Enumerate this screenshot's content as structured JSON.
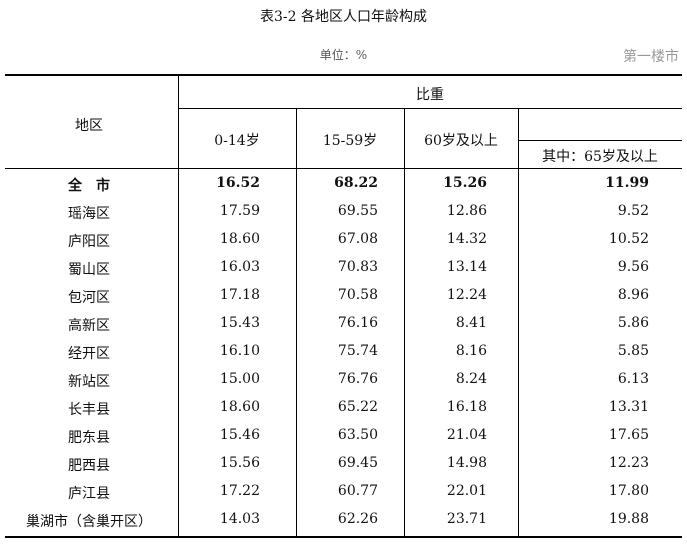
{
  "title": "表3-2  各地区人口年龄构成",
  "unit": "单位：%",
  "headers": {
    "region": "地区",
    "weight": "比重",
    "age_0_14": "0-14岁",
    "age_15_59": "15-59岁",
    "age_60_plus": "60岁及以上",
    "age_65_plus": "其中：65岁及以上"
  },
  "rows": [
    {
      "name": "全　市",
      "v": [
        "16.52",
        "68.22",
        "15.26",
        "11.99"
      ]
    },
    {
      "name": "瑶海区",
      "v": [
        "17.59",
        "69.55",
        "12.86",
        "9.52"
      ]
    },
    {
      "name": "庐阳区",
      "v": [
        "18.60",
        "67.08",
        "14.32",
        "10.52"
      ]
    },
    {
      "name": "蜀山区",
      "v": [
        "16.03",
        "70.83",
        "13.14",
        "9.56"
      ]
    },
    {
      "name": "包河区",
      "v": [
        "17.18",
        "70.58",
        "12.24",
        "8.96"
      ]
    },
    {
      "name": "高新区",
      "v": [
        "15.43",
        "76.16",
        "8.41",
        "5.86"
      ]
    },
    {
      "name": "经开区",
      "v": [
        "16.10",
        "75.74",
        "8.16",
        "5.85"
      ]
    },
    {
      "name": "新站区",
      "v": [
        "15.00",
        "76.76",
        "8.24",
        "6.13"
      ]
    },
    {
      "name": "长丰县",
      "v": [
        "18.60",
        "65.22",
        "16.18",
        "13.31"
      ]
    },
    {
      "name": "肥东县",
      "v": [
        "15.46",
        "63.50",
        "21.04",
        "17.65"
      ]
    },
    {
      "name": "肥西县",
      "v": [
        "15.56",
        "69.45",
        "14.98",
        "12.23"
      ]
    },
    {
      "name": "庐江县",
      "v": [
        "17.22",
        "60.77",
        "22.01",
        "17.80"
      ]
    },
    {
      "name": "巢湖市（含巢开区）",
      "v": [
        "14.03",
        "62.26",
        "23.71",
        "19.88"
      ]
    }
  ],
  "watermark": "第一楼市"
}
